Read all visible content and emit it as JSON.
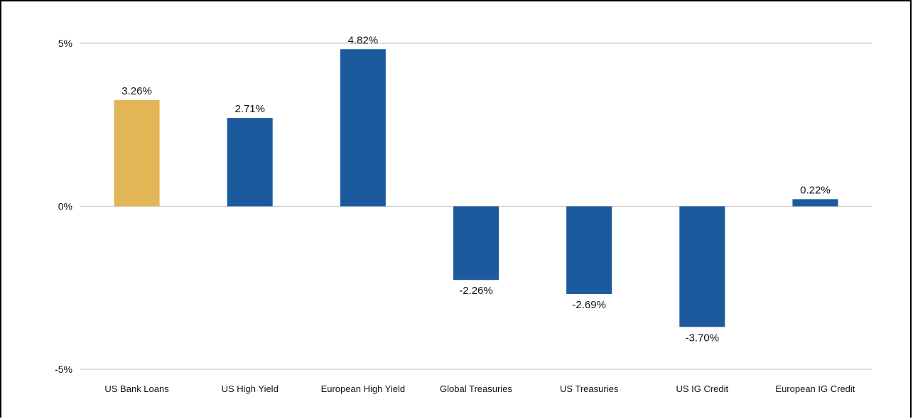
{
  "chart_data": {
    "type": "bar",
    "title": "",
    "xlabel": "",
    "ylabel": "",
    "ylim": [
      -5,
      5
    ],
    "yticks": [
      5,
      0,
      -5
    ],
    "ytick_labels": [
      "5%",
      "0%",
      "-5%"
    ],
    "grid": true,
    "legend": "none",
    "categories": [
      "US Bank Loans",
      "US High Yield",
      "European High Yield",
      "Global Treasuries",
      "US Treasuries",
      "US IG Credit",
      "European IG Credit"
    ],
    "values": [
      3.26,
      2.71,
      4.82,
      -2.26,
      -2.69,
      -3.7,
      0.22
    ],
    "data_labels": [
      "3.26%",
      "2.71%",
      "4.82%",
      "-2.26%",
      "-2.69%",
      "-3.70%",
      "0.22%"
    ],
    "colors": {
      "highlight": "#E2B657",
      "default": "#1C5A9E",
      "grid": "#C8C8C8"
    },
    "highlight_index": 0
  }
}
